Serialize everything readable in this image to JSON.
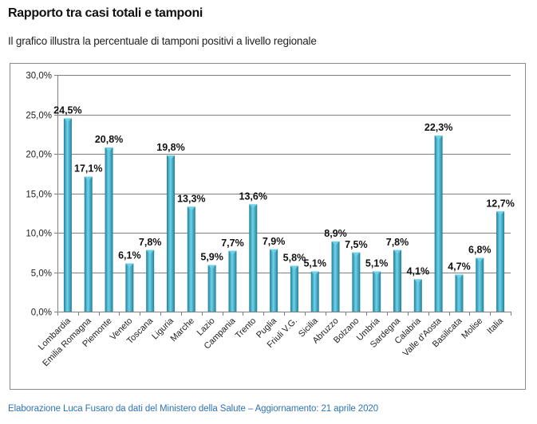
{
  "header": {
    "title": "Rapporto tra casi totali e tamponi",
    "subtitle": "Il grafico illustra la percentuale di tamponi positivi  a livello regionale"
  },
  "footer": {
    "text": "Elaborazione  Luca Fusaro da dati del Ministero della Salute – Aggiornamento: 21 aprile 2020"
  },
  "colors": {
    "bar": "#2ea6c6",
    "bar_dark": "#1f7f9a",
    "bar_light": "#6fd3ea",
    "grid": "#808080",
    "footer": "#2e74b5"
  },
  "chart_data": {
    "type": "bar",
    "title": "",
    "xlabel": "",
    "ylabel": "",
    "ylim": [
      0,
      30
    ],
    "yticks": [
      0,
      5,
      10,
      15,
      20,
      25,
      30
    ],
    "ytick_labels": [
      "0,0%",
      "5,0%",
      "10,0%",
      "15,0%",
      "20,0%",
      "25,0%",
      "30,0%"
    ],
    "grid": true,
    "legend": "none",
    "categories": [
      "Lombardia",
      "Emilia Romagna",
      "Piemonte",
      "Veneto",
      "Toscana",
      "Liguria",
      "Marche",
      "Lazio",
      "Campania",
      "Trento",
      "Puglia",
      "Friuli V.G.",
      "Sicilia",
      "Abruzzo",
      "Bolzano",
      "Umbria",
      "Sardegna",
      "Calabria",
      "Valle d'Aosta",
      "Basilicata",
      "Molise",
      "Italia"
    ],
    "values": [
      24.5,
      17.1,
      20.8,
      6.1,
      7.8,
      19.8,
      13.3,
      5.9,
      7.7,
      13.6,
      7.9,
      5.8,
      5.1,
      8.9,
      7.5,
      5.1,
      7.8,
      4.1,
      22.3,
      4.7,
      6.8,
      12.7
    ],
    "data_labels": [
      "24,5%",
      "17,1%",
      "20,8%",
      "6,1%",
      "7,8%",
      "19,8%",
      "13,3%",
      "5,9%",
      "7,7%",
      "13,6%",
      "7,9%",
      "5,8%",
      "5,1%",
      "8,9%",
      "7,5%",
      "5,1%",
      "7,8%",
      "4,1%",
      "22,3%",
      "4,7%",
      "6,8%",
      "12,7%"
    ]
  }
}
